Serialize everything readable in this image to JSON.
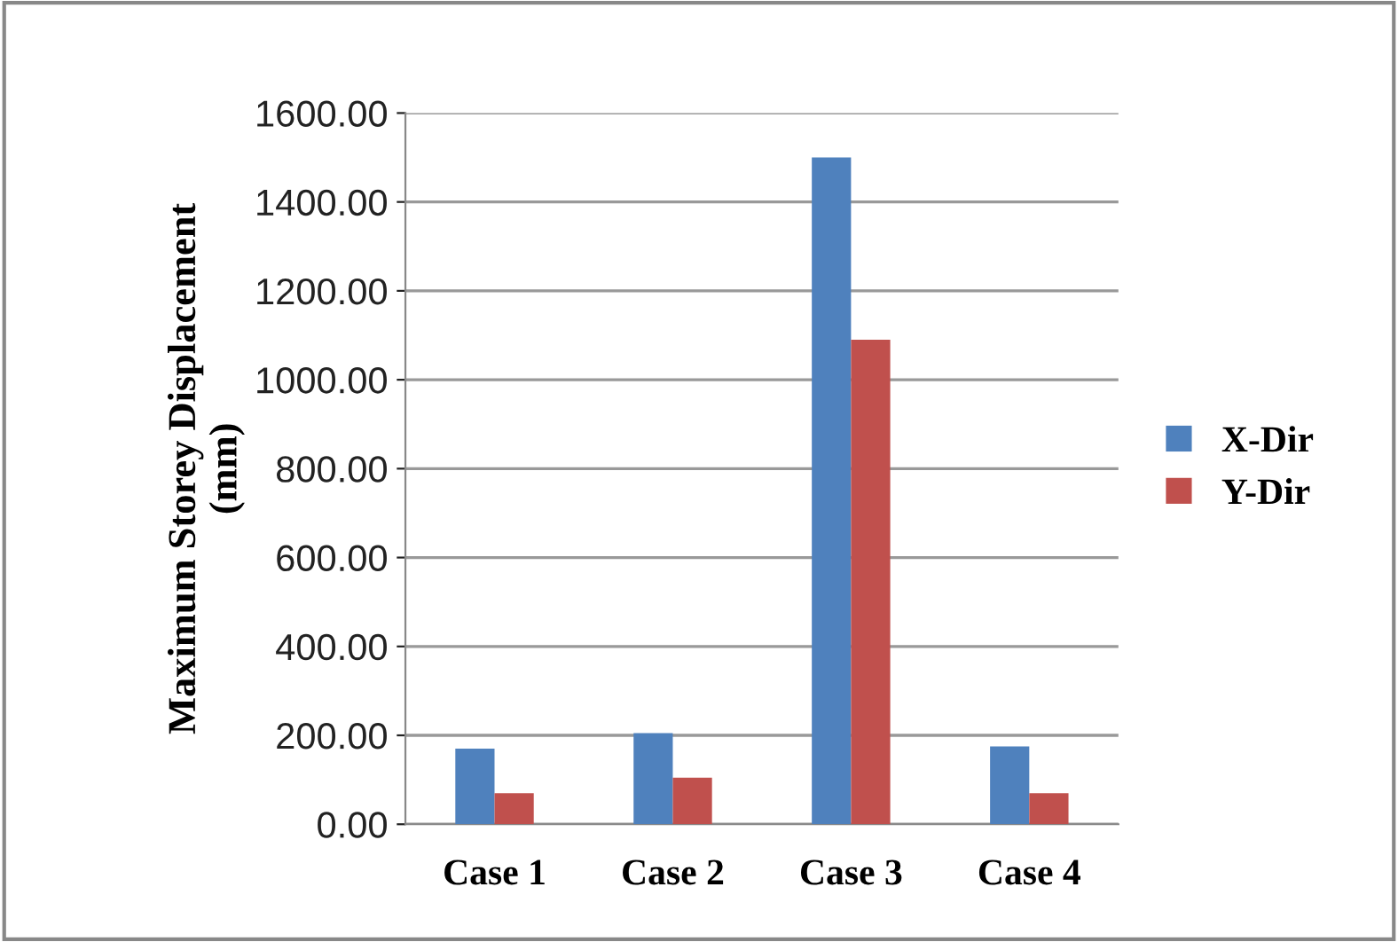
{
  "chart_data": {
    "type": "bar",
    "ylabel": "Maximum Storey Displacement\n(mm)",
    "categories": [
      "Case 1",
      "Case 2",
      "Case 3",
      "Case 4"
    ],
    "series": [
      {
        "name": "X-Dir",
        "color": "#4f81bd",
        "values": [
          170,
          205,
          1500,
          175
        ]
      },
      {
        "name": "Y-Dir",
        "color": "#c0504d",
        "values": [
          70,
          105,
          1090,
          70
        ]
      }
    ],
    "ylim": [
      0,
      1600
    ],
    "yticks": [
      {
        "value": 0,
        "label": "0.00"
      },
      {
        "value": 200,
        "label": "200.00"
      },
      {
        "value": 400,
        "label": "400.00"
      },
      {
        "value": 600,
        "label": "600.00"
      },
      {
        "value": 800,
        "label": "800.00"
      },
      {
        "value": 1000,
        "label": "1000.00"
      },
      {
        "value": 1200,
        "label": "1200.00"
      },
      {
        "value": 1400,
        "label": "1400.00"
      },
      {
        "value": 1600,
        "label": "1600.00"
      }
    ],
    "grid": "y",
    "legend": "right"
  }
}
